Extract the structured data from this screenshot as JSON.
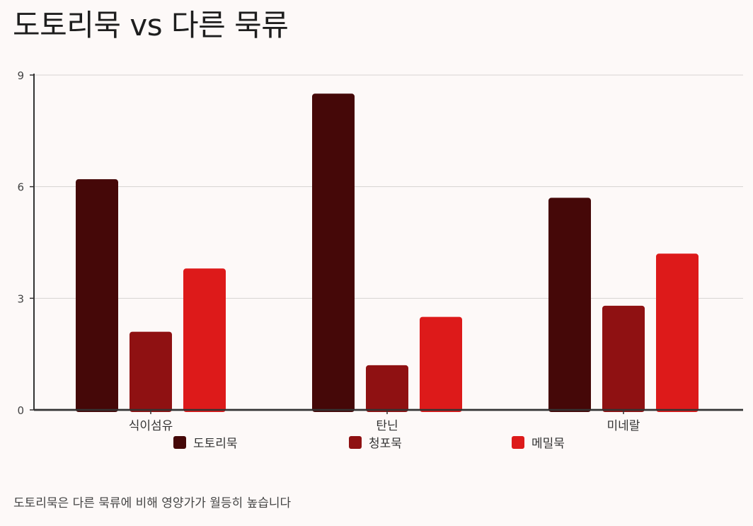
{
  "title": "도토리묵 vs 다른 묵류",
  "caption": "도토리묵은 다른 묵류에 비해 영양가가 월등히 높습니다",
  "chart_data": {
    "type": "bar",
    "title": "도토리묵 vs 다른 묵류",
    "xlabel": "",
    "ylabel": "",
    "categories": [
      "식이섬유",
      "탄닌",
      "미네랄"
    ],
    "series": [
      {
        "name": "도토리묵",
        "values": [
          6.2,
          8.5,
          5.7
        ],
        "color": "#450808"
      },
      {
        "name": "청포묵",
        "values": [
          2.1,
          1.2,
          2.8
        ],
        "color": "#8f1112"
      },
      {
        "name": "메밀묵",
        "values": [
          3.8,
          2.5,
          4.2
        ],
        "color": "#dd1a1a"
      }
    ],
    "ylim": [
      0,
      9
    ],
    "yticks": [
      0,
      3,
      6,
      9
    ],
    "grid": true,
    "legend_position": "bottom"
  }
}
